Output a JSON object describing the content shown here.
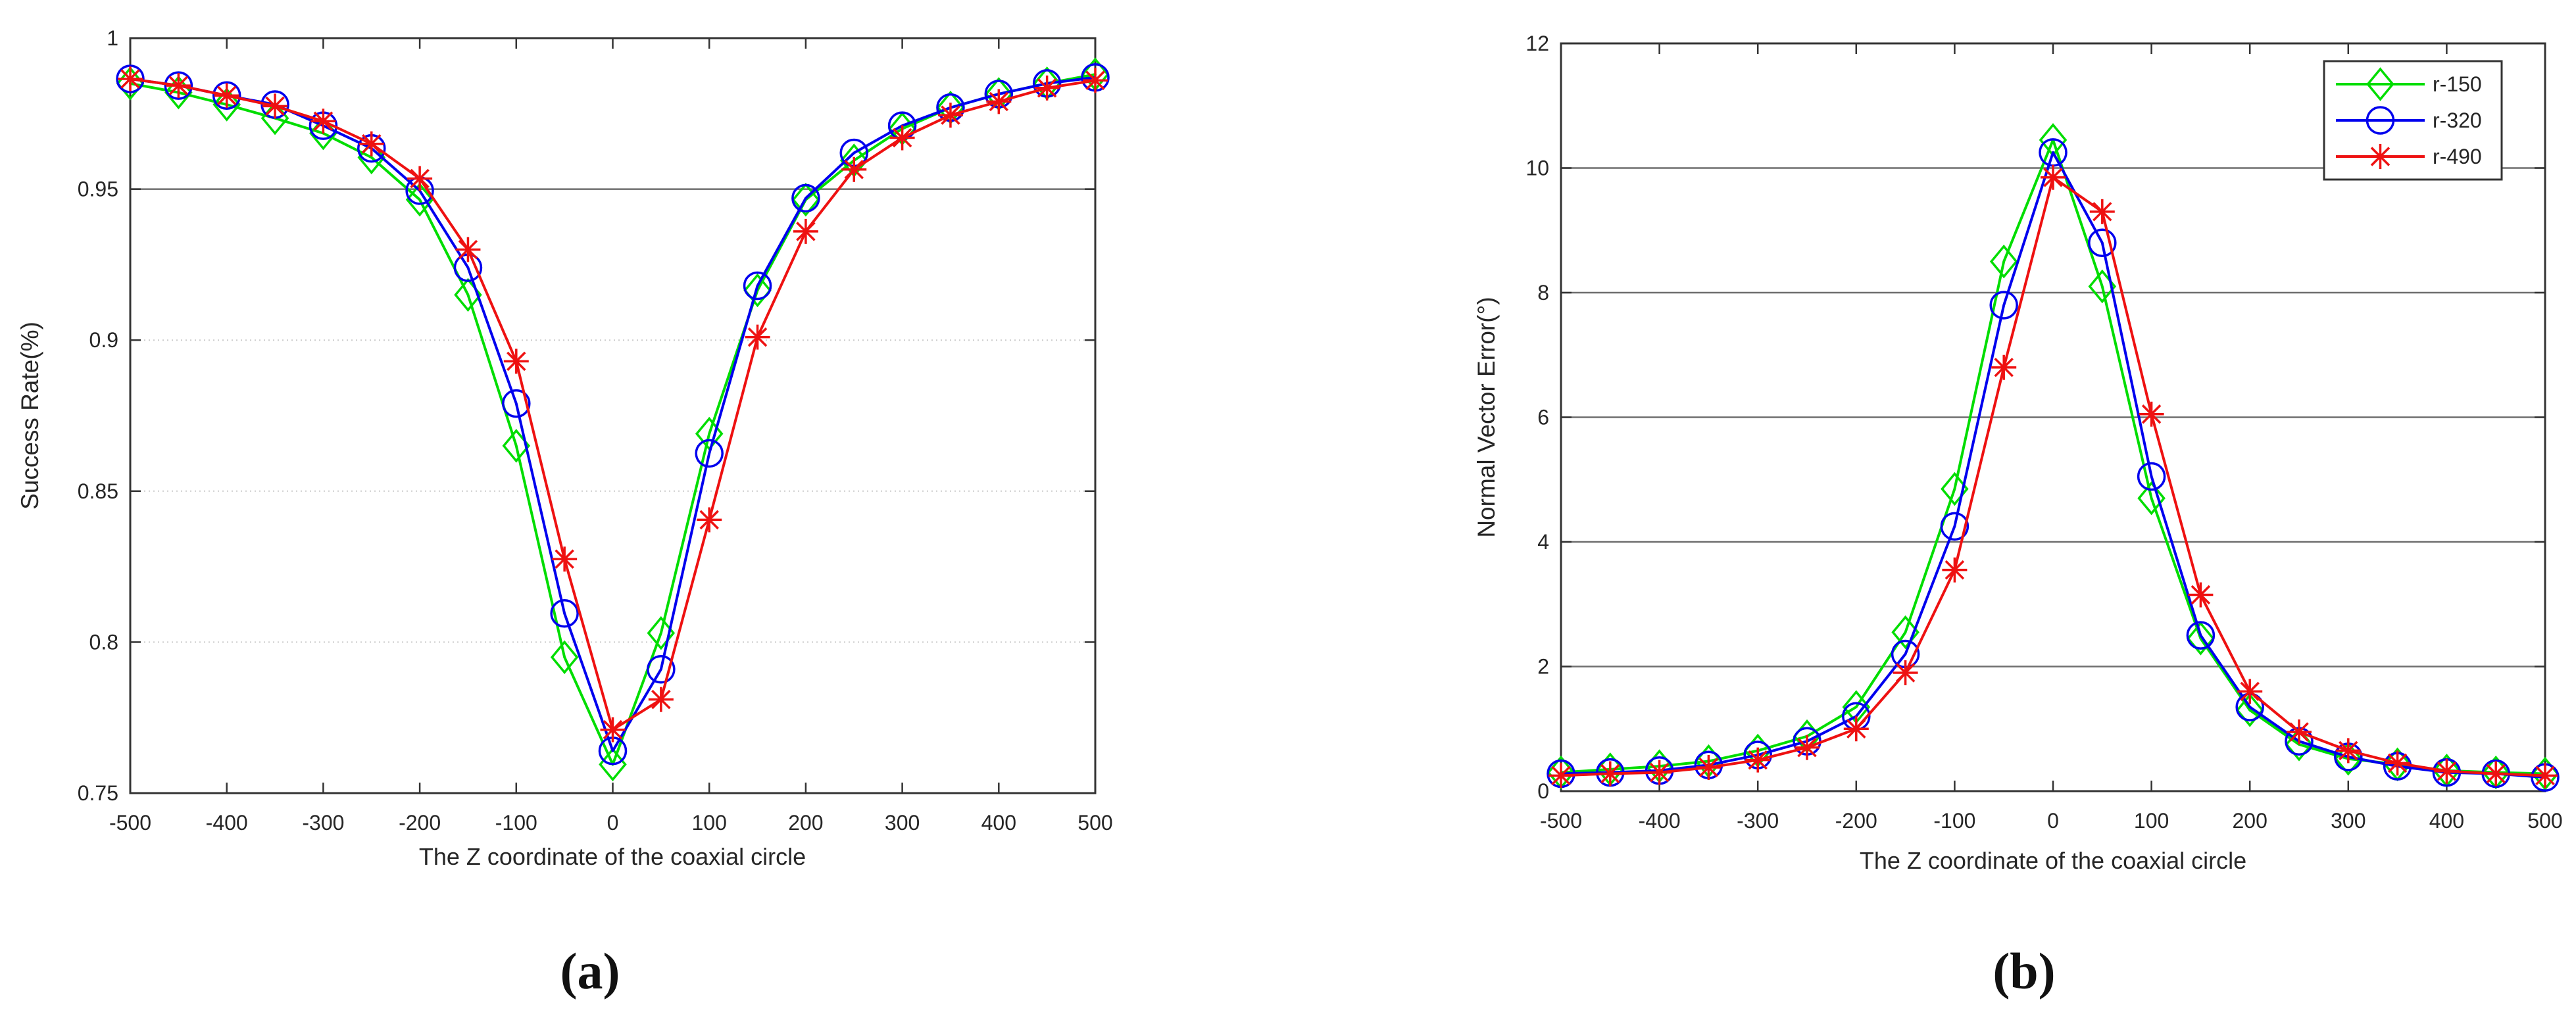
{
  "figure": {
    "background": "#ffffff",
    "captions": {
      "a": "(a)",
      "b": "(b)"
    }
  },
  "colors": {
    "r-150": "#00dd00",
    "r-320": "#0000ee",
    "r-490": "#ee1111",
    "axis": "#333333",
    "tick_text": "#262626",
    "grid_strong": "#6e6e6e",
    "grid_faint": "#cccccc",
    "legend_border": "#333333",
    "legend_fill": "#ffffff"
  },
  "legend": {
    "position": "top-right",
    "entries": [
      {
        "label": "r-150",
        "series": "r-150",
        "marker": "diamond"
      },
      {
        "label": "r-320",
        "series": "r-320",
        "marker": "circle"
      },
      {
        "label": "r-490",
        "series": "r-490",
        "marker": "asterisk"
      }
    ]
  },
  "chart_data": [
    {
      "id": "a",
      "type": "line",
      "title": "",
      "xlabel": "The Z coordinate of the coaxial circle",
      "ylabel": "Success Rate(%)",
      "xlim": [
        -500,
        500
      ],
      "ylim": [
        0.75,
        1
      ],
      "xticks": [
        -500,
        -400,
        -300,
        -200,
        -100,
        0,
        100,
        200,
        300,
        400,
        500
      ],
      "xtick_labels": [
        "-500",
        "-400",
        "-300",
        "-200",
        "-100",
        "0",
        "100",
        "200",
        "300",
        "400",
        "500"
      ],
      "yticks": [
        0.75,
        0.8,
        0.85,
        0.9,
        0.95,
        1
      ],
      "ytick_labels": [
        "0.75",
        "0.8",
        "0.85",
        "0.9",
        "0.95",
        "1"
      ],
      "grid_strong": [
        0.95
      ],
      "grid_faint": [
        0.8,
        0.85,
        0.9
      ],
      "legend": false,
      "x": [
        -500,
        -450,
        -400,
        -350,
        -300,
        -250,
        -200,
        -150,
        -100,
        -50,
        0,
        50,
        100,
        150,
        200,
        250,
        300,
        350,
        400,
        450,
        500
      ],
      "series": [
        {
          "name": "r-150",
          "marker": "diamond",
          "values": [
            0.985,
            0.982,
            0.978,
            0.9735,
            0.9685,
            0.9605,
            0.9465,
            0.915,
            0.865,
            0.795,
            0.7595,
            0.803,
            0.869,
            0.9165,
            0.9465,
            0.9595,
            0.97,
            0.977,
            0.9815,
            0.985,
            0.988
          ]
        },
        {
          "name": "r-320",
          "marker": "circle",
          "values": [
            0.9865,
            0.9843,
            0.981,
            0.978,
            0.971,
            0.9635,
            0.9495,
            0.924,
            0.879,
            0.8095,
            0.764,
            0.791,
            0.8625,
            0.918,
            0.947,
            0.962,
            0.971,
            0.977,
            0.9815,
            0.985,
            0.987
          ]
        },
        {
          "name": "r-490",
          "marker": "asterisk",
          "values": [
            0.9865,
            0.9843,
            0.981,
            0.9775,
            0.9725,
            0.965,
            0.9535,
            0.93,
            0.893,
            0.8275,
            0.771,
            0.781,
            0.8405,
            0.901,
            0.936,
            0.9565,
            0.967,
            0.9745,
            0.979,
            0.9835,
            0.986
          ]
        }
      ]
    },
    {
      "id": "b",
      "type": "line",
      "title": "",
      "xlabel": "The Z coordinate of the coaxial circle",
      "ylabel": "Normal Vector Error(°)",
      "xlim": [
        -500,
        500
      ],
      "ylim": [
        0,
        12
      ],
      "xticks": [
        -500,
        -400,
        -300,
        -200,
        -100,
        0,
        100,
        200,
        300,
        400,
        500
      ],
      "xtick_labels": [
        "-500",
        "-400",
        "-300",
        "-200",
        "-100",
        "0",
        "100",
        "200",
        "300",
        "400",
        "500"
      ],
      "yticks": [
        0,
        2,
        4,
        6,
        8,
        10,
        12
      ],
      "ytick_labels": [
        "0",
        "2",
        "4",
        "6",
        "8",
        "10",
        "12"
      ],
      "grid_strong": [
        2,
        4,
        6,
        8,
        10
      ],
      "grid_faint": [],
      "legend": true,
      "x": [
        -500,
        -450,
        -400,
        -350,
        -300,
        -250,
        -200,
        -150,
        -100,
        -50,
        0,
        50,
        100,
        150,
        200,
        250,
        300,
        350,
        400,
        450,
        500
      ],
      "series": [
        {
          "name": "r-150",
          "marker": "diamond",
          "values": [
            0.3,
            0.35,
            0.4,
            0.48,
            0.65,
            0.88,
            1.35,
            2.55,
            4.85,
            8.5,
            10.45,
            8.1,
            4.7,
            2.45,
            1.3,
            0.75,
            0.52,
            0.43,
            0.33,
            0.3,
            0.28
          ]
        },
        {
          "name": "r-320",
          "marker": "circle",
          "values": [
            0.28,
            0.3,
            0.33,
            0.42,
            0.58,
            0.8,
            1.2,
            2.2,
            4.25,
            7.8,
            10.25,
            8.8,
            5.05,
            2.5,
            1.35,
            0.8,
            0.55,
            0.4,
            0.3,
            0.28,
            0.22
          ]
        },
        {
          "name": "r-490",
          "marker": "asterisk",
          "values": [
            0.25,
            0.28,
            0.3,
            0.38,
            0.5,
            0.7,
            1.0,
            1.9,
            3.55,
            6.8,
            9.85,
            9.3,
            6.05,
            3.15,
            1.6,
            0.95,
            0.65,
            0.45,
            0.32,
            0.28,
            0.25
          ]
        }
      ]
    }
  ]
}
